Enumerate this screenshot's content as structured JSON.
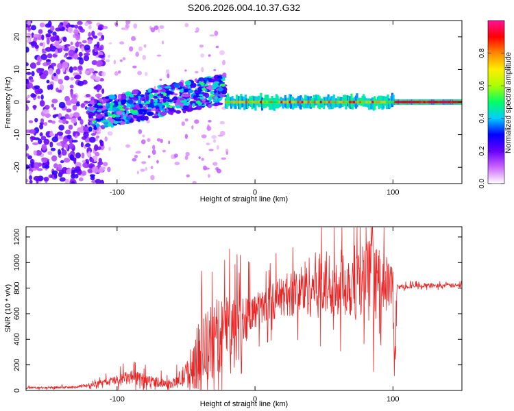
{
  "figure_title": "S206.2026.004.10.37.G32",
  "colors": {
    "snr_line": "#ee2222",
    "axis": "#000000",
    "background": "#ffffff"
  },
  "chart_data": [
    {
      "type": "heatmap",
      "title": "S206.2026.004.10.37.G32",
      "xlabel": "Height of straight line (km)",
      "ylabel": "Frequency (Hz)",
      "xlim": [
        -166,
        150
      ],
      "ylim": [
        -25,
        25
      ],
      "x_ticks": [
        -100,
        0,
        100
      ],
      "x_tick_labels": [
        "-100",
        "0",
        "100"
      ],
      "y_ticks": [
        -20,
        -10,
        0,
        10,
        20
      ],
      "y_tick_labels": [
        "-20",
        "-10",
        "0",
        "10",
        "20"
      ],
      "colorbar": {
        "label": "Normalized spectral amplitude",
        "range": [
          0,
          1
        ],
        "ticks": [
          0.0,
          0.2,
          0.4,
          0.6,
          0.8
        ],
        "tick_labels": [
          "0.0",
          "0.2",
          "0.4",
          "0.6",
          "0.8"
        ],
        "colormap": [
          "#ffffff",
          "#cc66ff",
          "#6600ff",
          "#0000ff",
          "#00ccff",
          "#00ff66",
          "#aaff00",
          "#ffee00",
          "#ff8800",
          "#ff0000",
          "#ff1199"
        ]
      },
      "features": [
        {
          "name": "scatter_region",
          "x_range": [
            -166,
            -110
          ],
          "freq_range": [
            -25,
            25
          ],
          "amplitude": 0.15
        },
        {
          "name": "divergent_band",
          "x_range": [
            -120,
            -22
          ],
          "freq_center_start": -4,
          "freq_center_end": 4,
          "amplitude": 0.3
        },
        {
          "name": "carrier_line",
          "x_range": [
            -22,
            150
          ],
          "freq": 0,
          "amplitude": 0.85
        }
      ]
    },
    {
      "type": "line",
      "title": "",
      "xlabel": "Height of straight line (km)",
      "ylabel": "SNR (10 * v/v)",
      "xlim": [
        -166,
        150
      ],
      "ylim": [
        0,
        1280
      ],
      "x_ticks": [
        -100,
        0,
        100
      ],
      "x_tick_labels": [
        "-100",
        "0",
        "100"
      ],
      "y_ticks": [
        0,
        200,
        400,
        600,
        800,
        1000,
        1200
      ],
      "y_tick_labels": [
        "0",
        "200",
        "400",
        "600",
        "800",
        "1000",
        "1200"
      ],
      "series": [
        {
          "name": "SNR",
          "color": "#ee2222",
          "envelope_x": [
            -166,
            -130,
            -110,
            -90,
            -80,
            -60,
            -50,
            -40,
            -30,
            -20,
            -10,
            0,
            10,
            20,
            30,
            40,
            50,
            60,
            70,
            80,
            85,
            90,
            95,
            100,
            101,
            102,
            103,
            105,
            120,
            140,
            150
          ],
          "envelope_y": [
            20,
            25,
            60,
            100,
            80,
            50,
            120,
            280,
            380,
            500,
            550,
            620,
            680,
            740,
            770,
            820,
            830,
            840,
            850,
            860,
            860,
            840,
            830,
            820,
            80,
            500,
            810,
            810,
            820,
            820,
            820
          ],
          "noise_amp": [
            8,
            10,
            25,
            60,
            50,
            30,
            100,
            280,
            320,
            280,
            220,
            140,
            140,
            160,
            200,
            250,
            270,
            250,
            300,
            320,
            340,
            260,
            220,
            200,
            60,
            300,
            20,
            18,
            18,
            18,
            18
          ]
        }
      ]
    }
  ]
}
